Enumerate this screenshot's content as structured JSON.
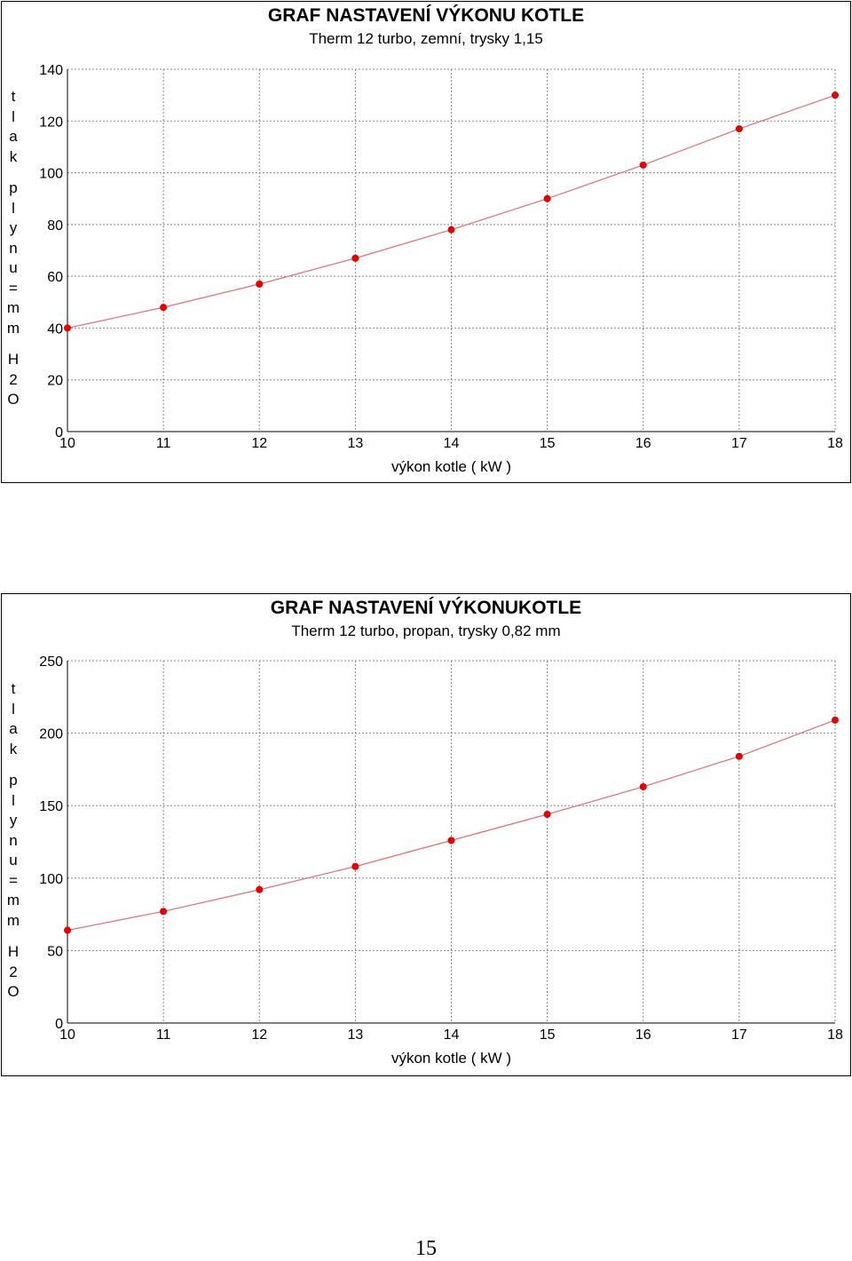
{
  "chart_data": [
    {
      "type": "line",
      "title": "GRAF NASTAVENÍ VÝKONU KOTLE",
      "subtitle": "Therm 12 turbo, zemní, trysky 1,15",
      "xlabel": "výkon kotle ( kW )",
      "ylabel_parts": [
        "t",
        "l",
        "a",
        "k",
        "",
        "p",
        "l",
        "y",
        "n",
        "u",
        "=",
        "m",
        "m",
        "",
        "H",
        "2",
        "O"
      ],
      "x": [
        10,
        11,
        12,
        13,
        14,
        15,
        16,
        17,
        18
      ],
      "y": [
        40,
        48,
        57,
        67,
        78,
        90,
        103,
        117,
        130
      ],
      "xlim": [
        10,
        18
      ],
      "ylim": [
        0,
        140
      ],
      "xticks": [
        10,
        11,
        12,
        13,
        14,
        15,
        16,
        17,
        18
      ],
      "yticks": [
        0,
        20,
        40,
        60,
        80,
        100,
        120,
        140
      ],
      "grid": true,
      "line_color": "#e07070",
      "marker_color": "#e00000"
    },
    {
      "type": "line",
      "title": "GRAF NASTAVENÍ VÝKONUKOTLE",
      "subtitle": "Therm 12 turbo, propan, trysky 0,82 mm",
      "xlabel": "výkon kotle ( kW )",
      "ylabel_parts": [
        "t",
        "l",
        "a",
        "k",
        "",
        "p",
        "l",
        "y",
        "n",
        "u",
        "=",
        "m",
        "m",
        "",
        "H",
        "2",
        "O"
      ],
      "x": [
        10,
        11,
        12,
        13,
        14,
        15,
        16,
        17,
        18
      ],
      "y": [
        64,
        77,
        92,
        108,
        126,
        144,
        163,
        184,
        209
      ],
      "xlim": [
        10,
        18
      ],
      "ylim": [
        0,
        250
      ],
      "xticks": [
        10,
        11,
        12,
        13,
        14,
        15,
        16,
        17,
        18
      ],
      "yticks": [
        0,
        50,
        100,
        150,
        200,
        250
      ],
      "grid": true,
      "line_color": "#e07070",
      "marker_color": "#e00000"
    }
  ],
  "page_number": "15"
}
